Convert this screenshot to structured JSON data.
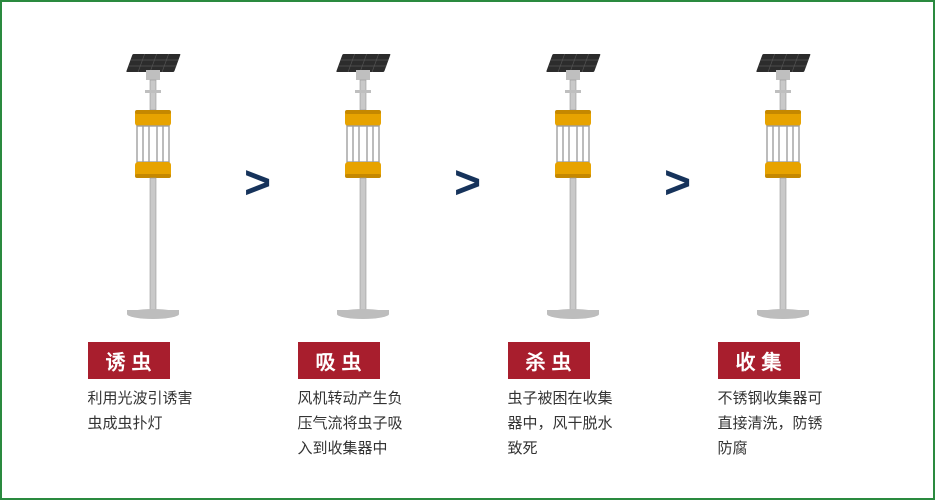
{
  "frame": {
    "border_color": "#2a8a3f",
    "background": "#ffffff"
  },
  "arrow": {
    "glyph": ">",
    "color": "#16335b",
    "fontsize": 46
  },
  "label_style": {
    "background": "#a81e2d",
    "text_color": "#ffffff",
    "fontsize": 20
  },
  "desc_style": {
    "color": "#333333",
    "fontsize": 15
  },
  "device_colors": {
    "panel_fill": "#2c2c2c",
    "panel_line": "#555555",
    "bracket": "#bfbfbf",
    "pole": "#c9c9c9",
    "pole_edge": "#9a9a9a",
    "cap_yellow": "#e7a300",
    "cap_yellow_dark": "#c58800",
    "cage_line": "#9f9f9f",
    "base": "#bdbdbd"
  },
  "steps": [
    {
      "id": "attract",
      "label": "诱虫",
      "desc": "利用光波引诱害虫成虫扑灯"
    },
    {
      "id": "suck",
      "label": "吸虫",
      "desc": "风机转动产生负压气流将虫子吸入到收集器中"
    },
    {
      "id": "kill",
      "label": "杀虫",
      "desc": "虫子被困在收集器中，风干脱水致死"
    },
    {
      "id": "collect",
      "label": "收集",
      "desc": "不锈钢收集器可直接清洗，防锈防腐"
    }
  ]
}
